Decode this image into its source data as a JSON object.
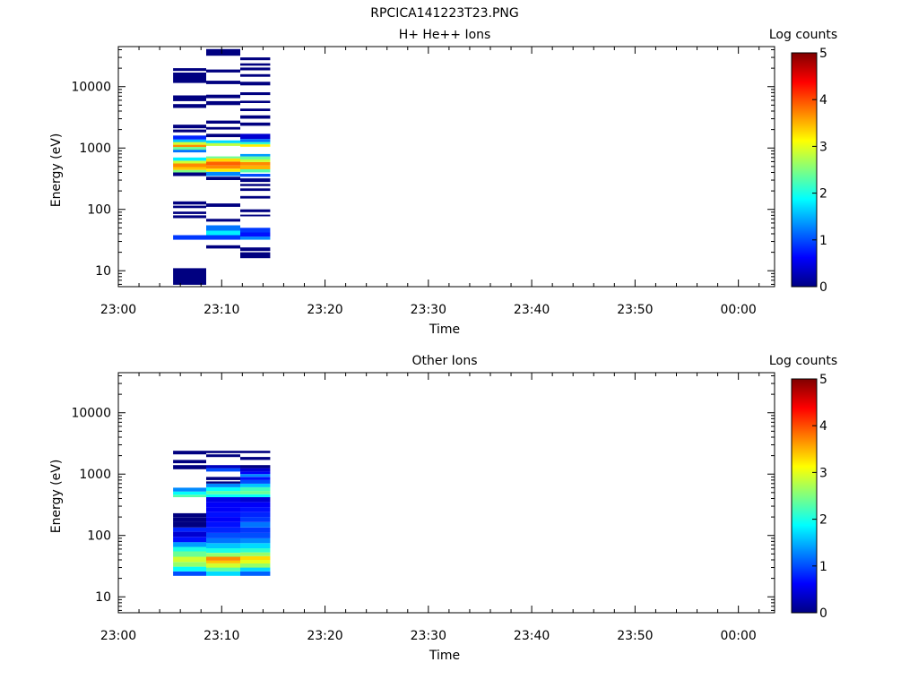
{
  "figure_title": "RPCICA141223T23.PNG",
  "chart_data": [
    {
      "type": "heatmap",
      "title": "H+ He++ Ions",
      "xlabel": "Time",
      "ylabel": "Energy (eV)",
      "colorbar_label": "Log counts",
      "colorbar_ticks": [
        "0",
        "1",
        "2",
        "3",
        "4",
        "5"
      ],
      "colorbar_range": [
        0,
        5
      ],
      "colormap": "jet",
      "x_ticks": [
        "23:00",
        "23:10",
        "23:20",
        "23:30",
        "23:40",
        "23:50",
        "00:00"
      ],
      "x_range_minutes": [
        0,
        63.5
      ],
      "y_scale": "log",
      "y_ticks": [
        "10",
        "100",
        "1000",
        "10000"
      ],
      "y_range": [
        5.5,
        45000
      ],
      "columns": [
        {
          "t_start": 5.3,
          "t_end": 8.5,
          "cells": [
            [
              5.9,
              11,
              0
            ],
            [
              32,
              38,
              0.9
            ],
            [
              72,
              80,
              0
            ],
            [
              84,
              92,
              0
            ],
            [
              105,
              115,
              0
            ],
            [
              120,
              135,
              0
            ],
            [
              350,
              400,
              0
            ],
            [
              400,
              440,
              2.5
            ],
            [
              440,
              490,
              3.4
            ],
            [
              490,
              560,
              3.7
            ],
            [
              560,
              620,
              2.9
            ],
            [
              620,
              700,
              1.8
            ],
            [
              850,
              940,
              1.2
            ],
            [
              940,
              1040,
              2.4
            ],
            [
              1040,
              1130,
              3.7
            ],
            [
              1130,
              1250,
              2.9
            ],
            [
              1250,
              1380,
              1.6
            ],
            [
              1380,
              1600,
              0.8
            ],
            [
              1800,
              2000,
              0
            ],
            [
              2100,
              2400,
              0
            ],
            [
              4500,
              5200,
              0
            ],
            [
              5800,
              7200,
              0
            ],
            [
              11500,
              17000,
              0
            ],
            [
              18000,
              20000,
              0
            ]
          ]
        },
        {
          "t_start": 8.5,
          "t_end": 11.8,
          "cells": [
            [
              23,
              26,
              0
            ],
            [
              32,
              38,
              0.9
            ],
            [
              38,
              45,
              1.8
            ],
            [
              45,
              55,
              1.2
            ],
            [
              63,
              70,
              0
            ],
            [
              110,
              125,
              0
            ],
            [
              300,
              340,
              0
            ],
            [
              350,
              410,
              1.3
            ],
            [
              410,
              460,
              3.2
            ],
            [
              460,
              520,
              3.7
            ],
            [
              520,
              600,
              3.9
            ],
            [
              600,
              680,
              3.3
            ],
            [
              680,
              730,
              2.4
            ],
            [
              1080,
              1200,
              2.8
            ],
            [
              1200,
              1330,
              1.7
            ],
            [
              1500,
              1700,
              0
            ],
            [
              2000,
              2200,
              0
            ],
            [
              2500,
              2800,
              0
            ],
            [
              5000,
              5800,
              0
            ],
            [
              6500,
              7400,
              0
            ],
            [
              11000,
              12500,
              0
            ],
            [
              17000,
              19000,
              0
            ],
            [
              32000,
              41000,
              0
            ]
          ]
        },
        {
          "t_start": 11.8,
          "t_end": 14.7,
          "cells": [
            [
              16,
              20,
              0
            ],
            [
              21,
              24,
              0
            ],
            [
              32,
              36,
              1.3
            ],
            [
              36,
              42,
              0.7
            ],
            [
              42,
              50,
              0.9
            ],
            [
              77,
              82,
              0
            ],
            [
              90,
              100,
              0
            ],
            [
              150,
              165,
              0
            ],
            [
              200,
              220,
              0
            ],
            [
              240,
              260,
              0
            ],
            [
              280,
              320,
              0
            ],
            [
              340,
              380,
              1.0
            ],
            [
              400,
              450,
              2.3
            ],
            [
              450,
              520,
              3.5
            ],
            [
              520,
              590,
              3.7
            ],
            [
              590,
              650,
              2.9
            ],
            [
              650,
              730,
              2.4
            ],
            [
              730,
              800,
              1.4
            ],
            [
              1050,
              1150,
              3.2
            ],
            [
              1150,
              1250,
              2.1
            ],
            [
              1250,
              1400,
              1.2
            ],
            [
              1400,
              1700,
              0.4
            ],
            [
              2300,
              2600,
              0
            ],
            [
              3000,
              3400,
              0
            ],
            [
              4000,
              4400,
              0
            ],
            [
              5400,
              5900,
              0
            ],
            [
              7300,
              8100,
              0
            ],
            [
              10500,
              12000,
              0
            ],
            [
              14500,
              16000,
              0
            ],
            [
              18500,
              20500,
              0
            ],
            [
              22000,
              24000,
              0
            ],
            [
              27000,
              30000,
              0
            ]
          ]
        }
      ]
    },
    {
      "type": "heatmap",
      "title": "Other Ions",
      "xlabel": "Time",
      "ylabel": "Energy (eV)",
      "colorbar_label": "Log counts",
      "colorbar_ticks": [
        "0",
        "1",
        "2",
        "3",
        "4",
        "5"
      ],
      "colorbar_range": [
        0,
        5
      ],
      "colormap": "jet",
      "x_ticks": [
        "23:00",
        "23:10",
        "23:20",
        "23:30",
        "23:40",
        "23:50",
        "00:00"
      ],
      "x_range_minutes": [
        0,
        63.5
      ],
      "y_scale": "log",
      "y_ticks": [
        "10",
        "100",
        "1000",
        "10000"
      ],
      "y_range": [
        5.5,
        45000
      ],
      "columns": [
        {
          "t_start": 5.3,
          "t_end": 8.5,
          "cells": [
            [
              22,
              26,
              1.0
            ],
            [
              26,
              31,
              1.9
            ],
            [
              31,
              37,
              2.6
            ],
            [
              37,
              45,
              2.9
            ],
            [
              45,
              55,
              2.4
            ],
            [
              55,
              65,
              2.0
            ],
            [
              65,
              78,
              1.4
            ],
            [
              78,
              95,
              0.7
            ],
            [
              95,
              115,
              0.4
            ],
            [
              115,
              135,
              0.8
            ],
            [
              135,
              165,
              0
            ],
            [
              165,
              195,
              0
            ],
            [
              195,
              230,
              0
            ],
            [
              420,
              460,
              2.3
            ],
            [
              460,
              520,
              1.9
            ],
            [
              520,
              600,
              1.3
            ],
            [
              1200,
              1400,
              0
            ],
            [
              1500,
              1700,
              0
            ],
            [
              2100,
              2400,
              0
            ]
          ]
        },
        {
          "t_start": 8.5,
          "t_end": 11.8,
          "cells": [
            [
              22,
              26,
              1.7
            ],
            [
              26,
              30,
              2.3
            ],
            [
              30,
              35,
              2.9
            ],
            [
              35,
              39,
              3.4
            ],
            [
              39,
              45,
              3.7
            ],
            [
              45,
              52,
              2.6
            ],
            [
              52,
              62,
              2.0
            ],
            [
              62,
              75,
              1.6
            ],
            [
              75,
              90,
              1.2
            ],
            [
              90,
              110,
              1.0
            ],
            [
              110,
              135,
              0.8
            ],
            [
              135,
              165,
              0.7
            ],
            [
              165,
              200,
              0.6
            ],
            [
              200,
              240,
              0.7
            ],
            [
              240,
              290,
              0.6
            ],
            [
              290,
              350,
              0.6
            ],
            [
              350,
              420,
              0.5
            ],
            [
              420,
              470,
              1.9
            ],
            [
              470,
              530,
              2.3
            ],
            [
              530,
              610,
              1.9
            ],
            [
              610,
              700,
              1.3
            ],
            [
              700,
              760,
              0
            ],
            [
              800,
              900,
              0
            ],
            [
              1100,
              1250,
              1.0
            ],
            [
              1250,
              1400,
              0.3
            ],
            [
              1900,
              2100,
              0
            ],
            [
              2200,
              2400,
              0
            ]
          ]
        },
        {
          "t_start": 11.8,
          "t_end": 14.7,
          "cells": [
            [
              22,
              26,
              1.1
            ],
            [
              26,
              30,
              1.7
            ],
            [
              30,
              35,
              2.6
            ],
            [
              35,
              40,
              3.0
            ],
            [
              40,
              46,
              3.3
            ],
            [
              46,
              53,
              2.6
            ],
            [
              53,
              62,
              2.1
            ],
            [
              62,
              75,
              1.7
            ],
            [
              75,
              90,
              1.3
            ],
            [
              90,
              110,
              1.0
            ],
            [
              110,
              135,
              0.9
            ],
            [
              135,
              165,
              1.2
            ],
            [
              165,
              200,
              0.9
            ],
            [
              200,
              240,
              0.8
            ],
            [
              240,
              290,
              0.7
            ],
            [
              290,
              350,
              0.6
            ],
            [
              350,
              420,
              0.4
            ],
            [
              420,
              470,
              1.9
            ],
            [
              470,
              530,
              2.4
            ],
            [
              530,
              610,
              2.2
            ],
            [
              610,
              700,
              1.6
            ],
            [
              700,
              800,
              1.0
            ],
            [
              800,
              900,
              0.7
            ],
            [
              900,
              1000,
              1.3
            ],
            [
              1000,
              1100,
              0.6
            ],
            [
              1100,
              1250,
              0.4
            ],
            [
              1250,
              1400,
              0
            ],
            [
              1700,
              1900,
              0
            ],
            [
              2200,
              2400,
              0
            ]
          ]
        }
      ]
    }
  ]
}
